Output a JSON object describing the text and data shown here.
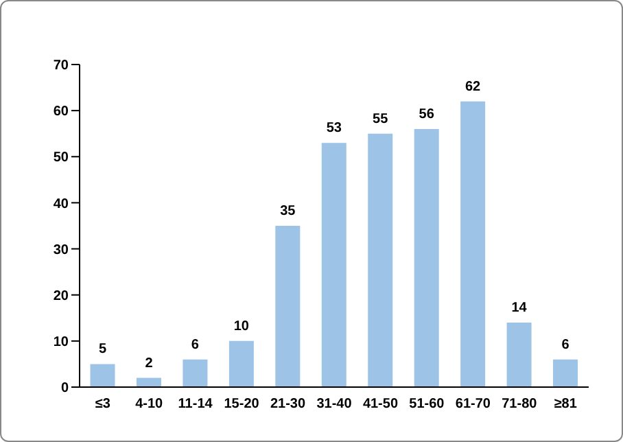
{
  "chart_data": {
    "type": "bar",
    "categories": [
      "≤3",
      "4-10",
      "11-14",
      "15-20",
      "21-30",
      "31-40",
      "41-50",
      "51-60",
      "61-70",
      "71-80",
      "≥81"
    ],
    "values": [
      5,
      2,
      6,
      10,
      35,
      53,
      55,
      56,
      62,
      14,
      6
    ],
    "color": "#9dc3e6",
    "ylim": [
      0,
      70
    ],
    "yticks": [
      0,
      10,
      20,
      30,
      40,
      50,
      60,
      70
    ],
    "data_labels": true
  }
}
